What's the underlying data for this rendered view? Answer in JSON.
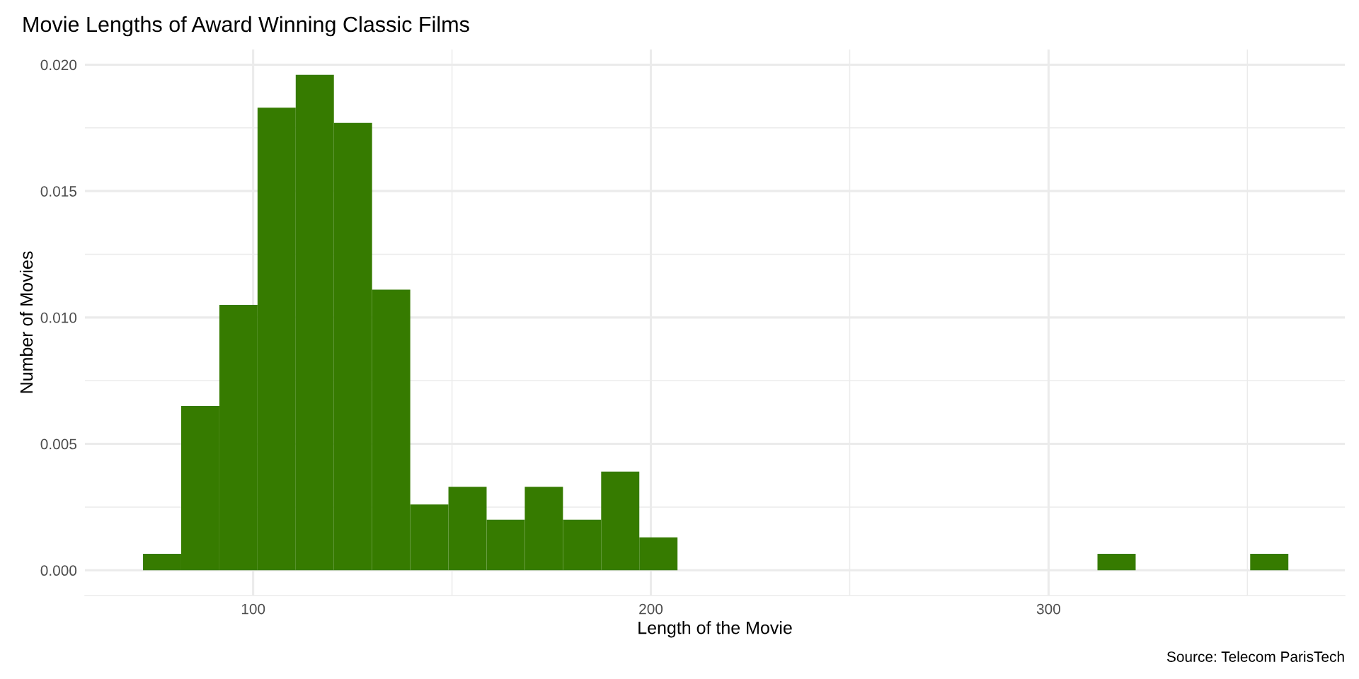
{
  "chart_data": {
    "type": "histogram",
    "title": "Movie Lengths of Award Winning Classic Films",
    "xlabel": "Length of the Movie",
    "ylabel": "Number of Movies",
    "annotations": [
      "Source: Telecom ParisTech"
    ],
    "bins": [
      72.3,
      81.9,
      91.5,
      101.1,
      110.7,
      120.3,
      129.9,
      139.5,
      149.1,
      158.7,
      168.3,
      177.9,
      187.5,
      197.1,
      206.7,
      216.3,
      225.9,
      235.5,
      245.1,
      254.7,
      264.3,
      273.9,
      283.5,
      293.1,
      302.7,
      312.3,
      321.9,
      331.5,
      341.1,
      350.7,
      360.3
    ],
    "values": [
      0.00065,
      0.0065,
      0.0105,
      0.0183,
      0.0196,
      0.0177,
      0.0111,
      0.0026,
      0.0033,
      0.002,
      0.0033,
      0.002,
      0.0039,
      0.0013,
      0,
      0,
      0,
      0,
      0,
      0,
      0,
      0,
      0,
      0,
      0,
      0.00065,
      0,
      0,
      0,
      0.00065
    ],
    "color": "#367b00",
    "xlim": [
      57.7,
      374.5
    ],
    "ylim": [
      -0.001,
      0.0206
    ],
    "xticks": [
      100,
      {
        "value": 150,
        "label": null
      },
      200,
      {
        "value": 250,
        "label": null
      },
      300,
      {
        "value": 350,
        "label": null
      }
    ],
    "yticks": [
      {
        "value": 0,
        "label": "0.000"
      },
      {
        "value": 0.0025,
        "label": null
      },
      {
        "value": 0.005,
        "label": "0.005"
      },
      {
        "value": 0.0075,
        "label": null
      },
      {
        "value": 0.01,
        "label": "0.010"
      },
      {
        "value": 0.0125,
        "label": null
      },
      {
        "value": 0.015,
        "label": "0.015"
      },
      {
        "value": 0.0175,
        "label": null
      },
      {
        "value": 0.02,
        "label": "0.020"
      }
    ],
    "grid": true
  }
}
